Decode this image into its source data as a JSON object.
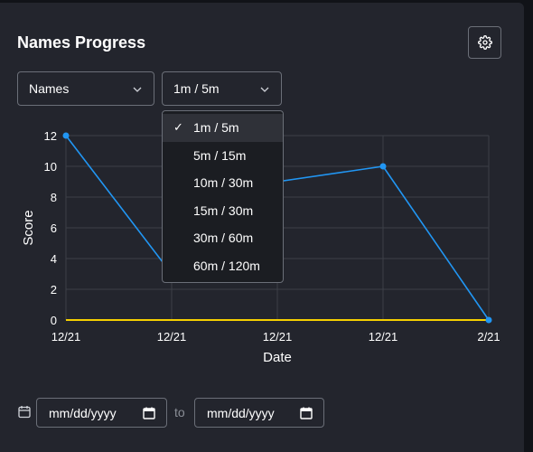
{
  "header": {
    "title": "Names Progress",
    "settings_icon": "gear-icon"
  },
  "filters": {
    "metric_select": {
      "value": "Names"
    },
    "range_select": {
      "value": "1m / 5m",
      "options": [
        "1m / 5m",
        "5m / 15m",
        "10m / 30m",
        "15m / 30m",
        "30m / 60m",
        "60m / 120m"
      ],
      "selected_index": 0
    }
  },
  "chart_data": {
    "type": "line",
    "xlabel": "Date",
    "ylabel": "Score",
    "x_tick_labels": [
      "12/21",
      "12/21",
      "12/21",
      "12/21",
      "2/21"
    ],
    "y_ticks": [
      0,
      2,
      4,
      6,
      8,
      10,
      12
    ],
    "ylim": [
      0,
      12
    ],
    "grid": true,
    "series": [
      {
        "color": "#2196f3",
        "values": [
          12,
          3,
          9,
          10,
          0
        ],
        "markers": true
      },
      {
        "color": "#f5d000",
        "values": [
          0,
          0,
          0,
          0,
          0
        ],
        "markers": false
      }
    ]
  },
  "date_range": {
    "start_placeholder": "mm/dd/yyyy",
    "end_placeholder": "mm/dd/yyyy",
    "separator": "to"
  },
  "colors": {
    "background": "#23252d",
    "border": "#6b6f78",
    "series_blue": "#2196f3",
    "series_yellow": "#f5d000"
  }
}
